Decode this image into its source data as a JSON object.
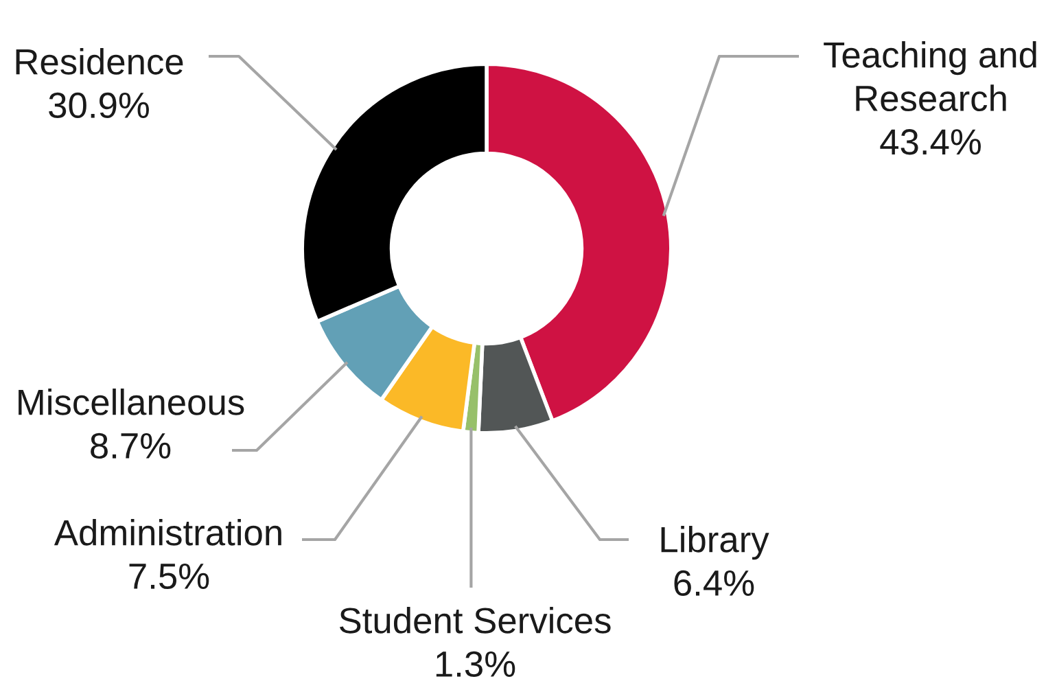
{
  "chart_data": {
    "type": "donut",
    "categories": [
      "Teaching and Research",
      "Library",
      "Student Services",
      "Administration",
      "Miscellaneous",
      "Residence"
    ],
    "values": [
      43.4,
      6.4,
      1.3,
      7.5,
      8.7,
      30.9
    ],
    "colors": [
      "#cf1243",
      "#525656",
      "#97c06a",
      "#fbb927",
      "#62a0b6",
      "#000000"
    ],
    "value_labels": [
      "43.4%",
      "6.4%",
      "1.3%",
      "7.5%",
      "8.7%",
      "30.9%"
    ]
  }
}
